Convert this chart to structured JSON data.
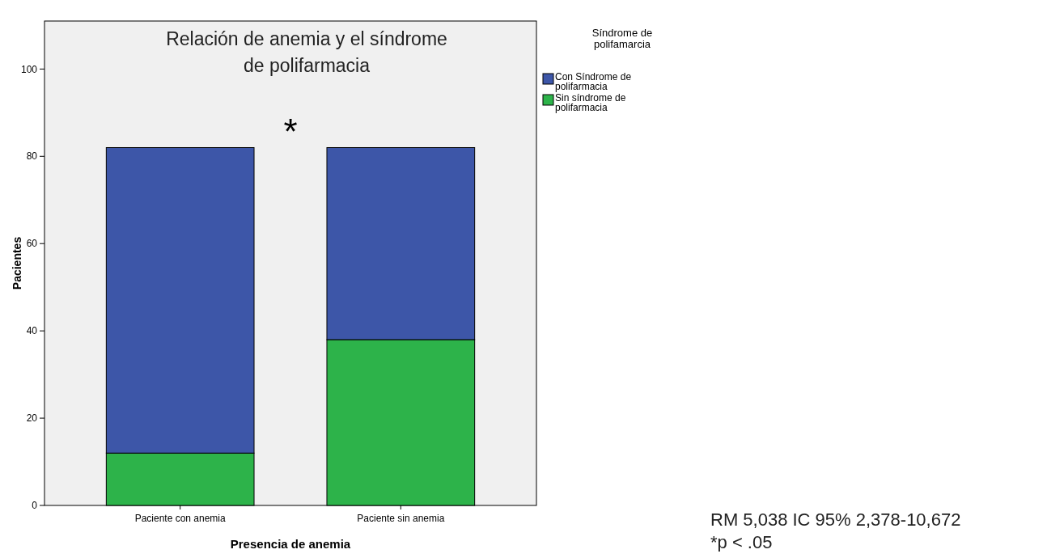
{
  "chart_data": {
    "type": "bar",
    "title": "Relación de anemia y el síndrome de polifarmacia",
    "xlabel": "Presencia de anemia",
    "ylabel": "Pacientes",
    "legend_title": "Síndrome de polifamarcia",
    "categories": [
      "Paciente con anemia",
      "Paciente sin anemia"
    ],
    "stacked": true,
    "series": [
      {
        "name": "Sin síndrome de polifarmacia",
        "color": "#2db34a",
        "values": [
          12,
          38
        ]
      },
      {
        "name": "Con Síndrome de polifarmacia",
        "color": "#3d56a8",
        "values": [
          70,
          44
        ]
      }
    ],
    "ylim": [
      0,
      111
    ],
    "yticks": [
      0,
      20,
      40,
      60,
      80,
      100
    ],
    "grid": false,
    "legend": "right",
    "annotations": [
      "*",
      "RM 5,038 IC 95% 2,378-10,672",
      "*p < .05"
    ]
  }
}
